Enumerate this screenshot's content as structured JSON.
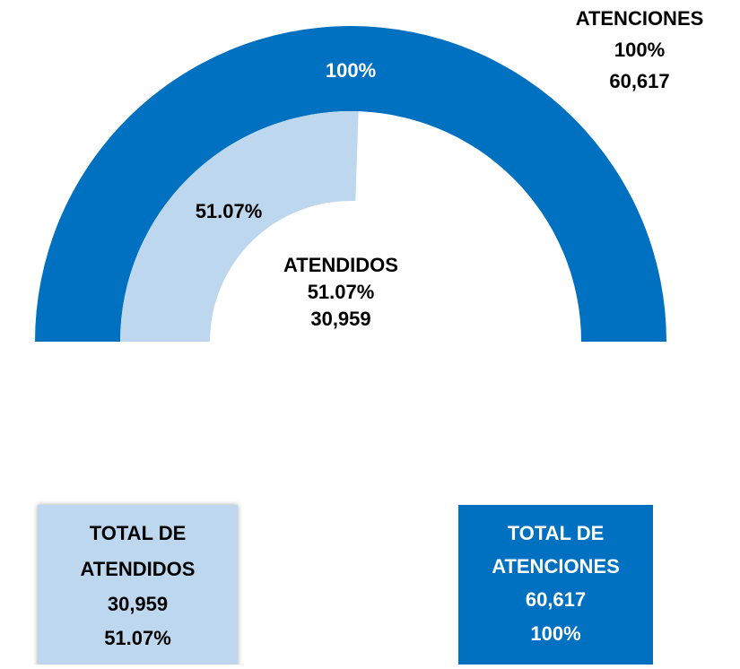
{
  "chart_data": {
    "type": "gauge",
    "ylim": [
      0,
      100
    ],
    "series": [
      {
        "name": "ATENCIONES",
        "color": "#0070c0",
        "values": [
          100
        ],
        "value_labels": [
          "100%"
        ],
        "count": 60617,
        "count_label": "60,617"
      },
      {
        "name": "ATENDIDOS",
        "color": "#bdd7ee",
        "values": [
          51.07
        ],
        "value_labels": [
          "51.07%"
        ],
        "count": 30959,
        "count_label": "30,959"
      }
    ],
    "cards": [
      {
        "title_lines": [
          "TOTAL DE",
          "ATENDIDOS"
        ]
      },
      {
        "title_lines": [
          "TOTAL DE",
          "ATENCIONES"
        ]
      }
    ]
  }
}
